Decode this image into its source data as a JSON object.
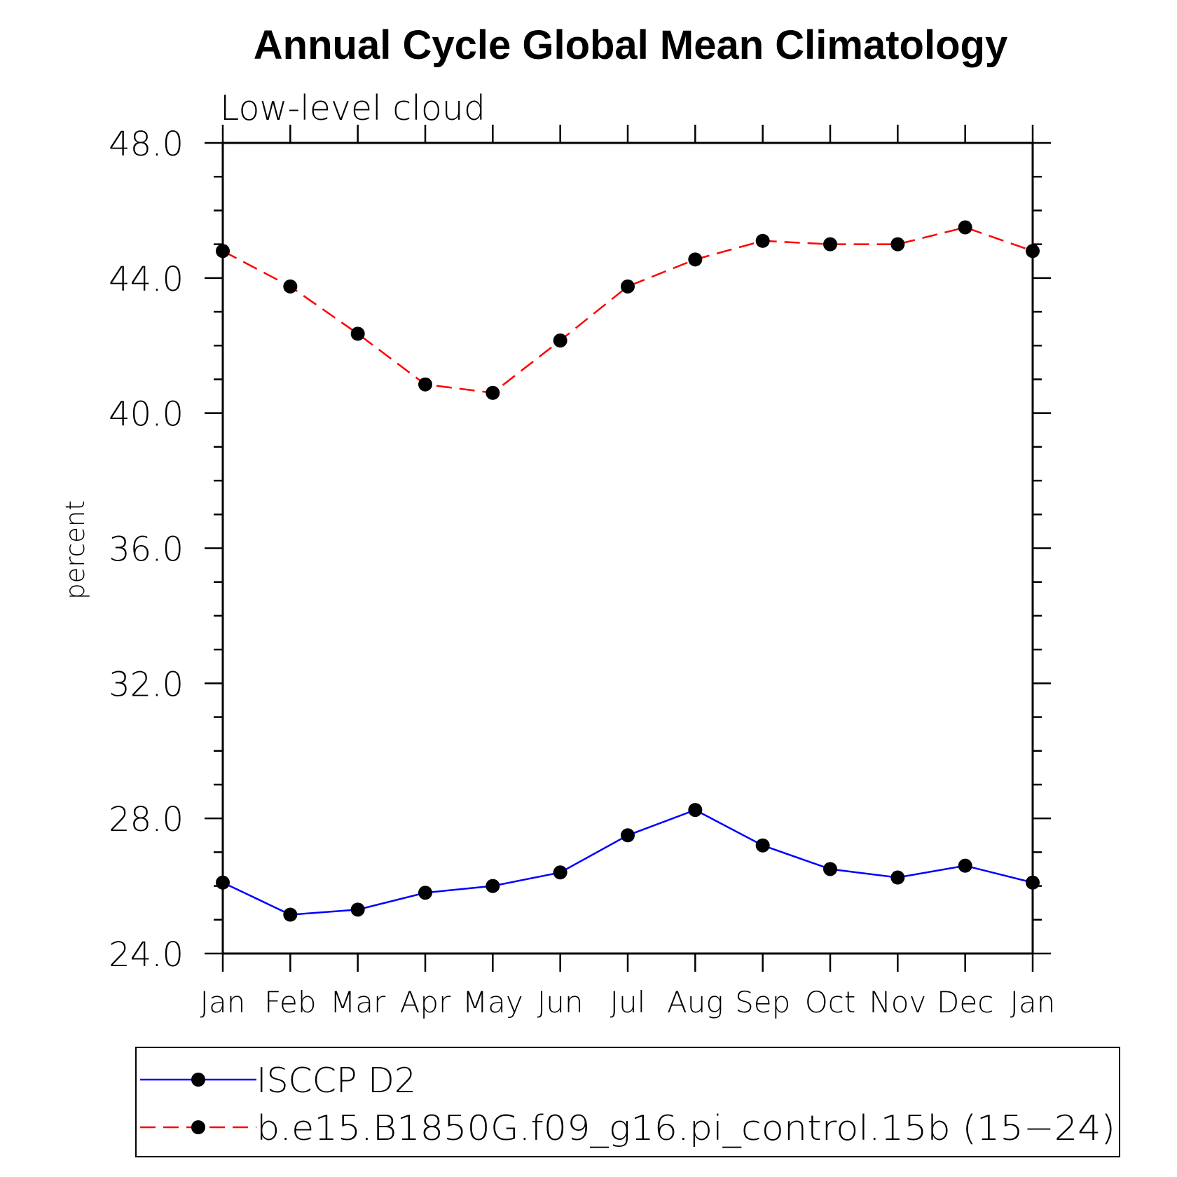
{
  "chart_data": {
    "type": "line",
    "title": "Annual Cycle Global Mean Climatology",
    "subtitle": "Low-level cloud",
    "xlabel": "",
    "ylabel": "percent",
    "ylim": [
      24.0,
      48.0
    ],
    "yticks": [
      "24.0",
      "28.0",
      "32.0",
      "36.0",
      "40.0",
      "44.0",
      "48.0"
    ],
    "categories": [
      "Jan",
      "Feb",
      "Mar",
      "Apr",
      "May",
      "Jun",
      "Jul",
      "Aug",
      "Sep",
      "Oct",
      "Nov",
      "Dec",
      "Jan"
    ],
    "series": [
      {
        "name": "ISCCP D2",
        "color": "#0000ff",
        "dash": "solid",
        "values": [
          26.1,
          25.15,
          25.3,
          25.8,
          26.0,
          26.4,
          27.5,
          28.25,
          27.2,
          26.5,
          26.25,
          26.6,
          26.1
        ]
      },
      {
        "name": "b.e15.B1850G.f09_g16.pi_control.15b (15-24)",
        "color": "#ff0000",
        "dash": "dashed",
        "values": [
          44.8,
          43.75,
          42.35,
          40.85,
          40.6,
          42.15,
          43.75,
          44.55,
          45.1,
          45.0,
          45.0,
          45.5,
          44.8
        ]
      }
    ],
    "legend": {
      "position": "bottom",
      "entries": [
        "ISCCP D2",
        "b.e15.B1850G.f09_g16.pi_control.15b (15−24)"
      ]
    },
    "grid": false
  }
}
